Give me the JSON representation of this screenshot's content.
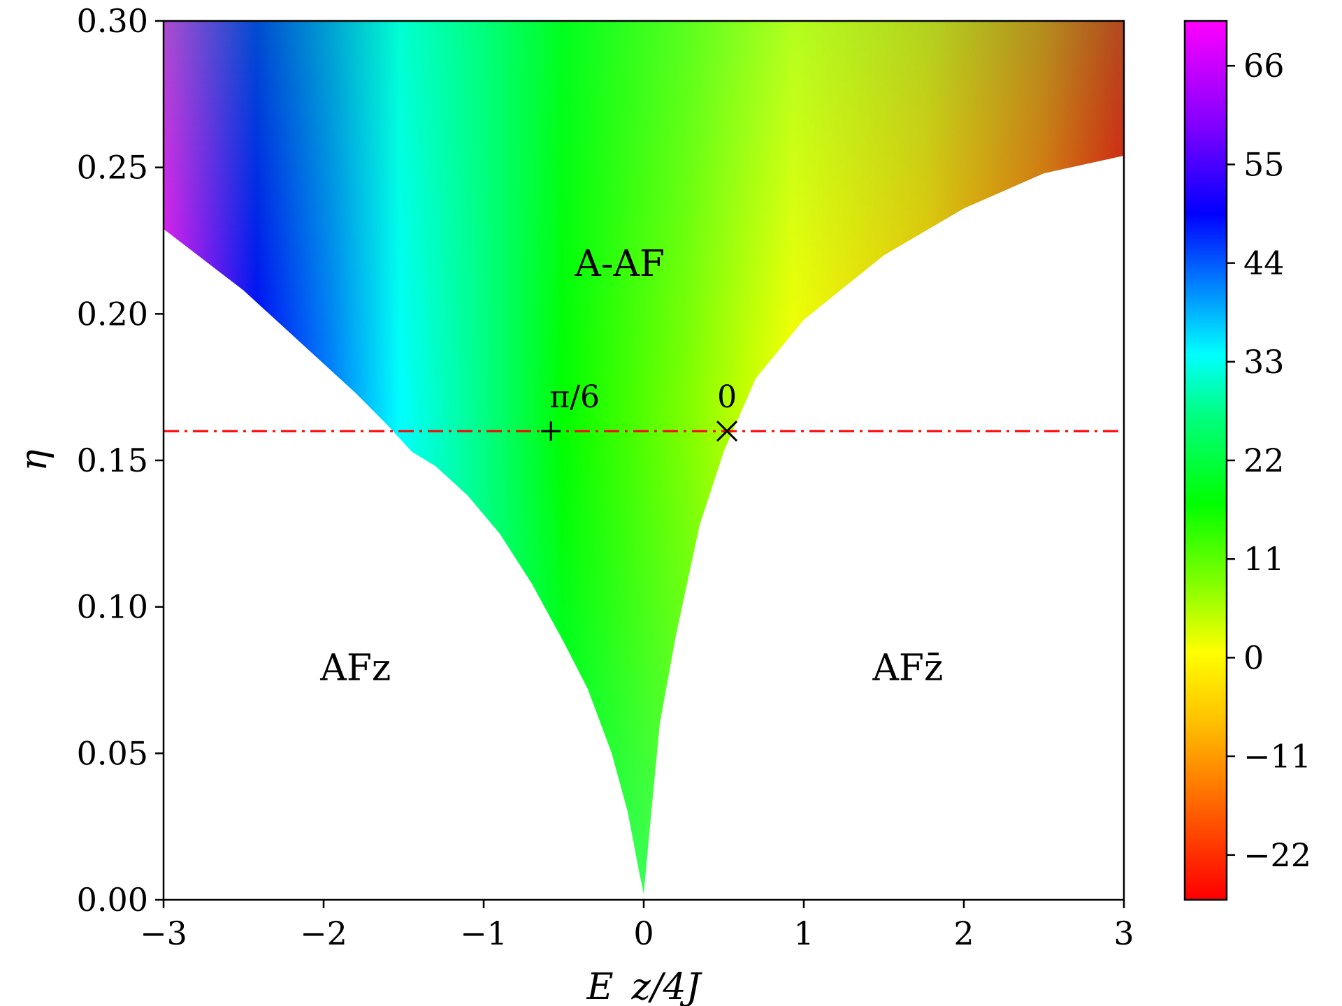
{
  "chart_data": {
    "type": "heatmap",
    "xlabel": "E_z/4J",
    "ylabel": "η",
    "xlim": [
      -3,
      3
    ],
    "ylim": [
      0,
      0.3
    ],
    "x_ticks": [
      {
        "value": -3,
        "label": "−3"
      },
      {
        "value": -2,
        "label": "−2"
      },
      {
        "value": -1,
        "label": "−1"
      },
      {
        "value": 0,
        "label": "0"
      },
      {
        "value": 1,
        "label": "1"
      },
      {
        "value": 2,
        "label": "2"
      },
      {
        "value": 3,
        "label": "3"
      }
    ],
    "y_ticks": [
      {
        "value": 0,
        "label": "0.00"
      },
      {
        "value": 0.05,
        "label": "0.05"
      },
      {
        "value": 0.1,
        "label": "0.10"
      },
      {
        "value": 0.15,
        "label": "0.15"
      },
      {
        "value": 0.2,
        "label": "0.20"
      },
      {
        "value": 0.25,
        "label": "0.25"
      },
      {
        "value": 0.3,
        "label": "0.30"
      }
    ],
    "colorbar": {
      "range": [
        -27,
        71
      ],
      "ticks": [
        {
          "value": 66,
          "label": "66"
        },
        {
          "value": 55,
          "label": "55"
        },
        {
          "value": 44,
          "label": "44"
        },
        {
          "value": 33,
          "label": "33"
        },
        {
          "value": 22,
          "label": "22"
        },
        {
          "value": 11,
          "label": "11"
        },
        {
          "value": 0,
          "label": "0"
        },
        {
          "value": -11,
          "label": "−11"
        },
        {
          "value": -22,
          "label": "−22"
        }
      ]
    },
    "boundary_left": [
      [
        -3.0,
        0.229
      ],
      [
        -2.5,
        0.208
      ],
      [
        -2.0,
        0.183
      ],
      [
        -1.8,
        0.173
      ],
      [
        -1.6,
        0.162
      ],
      [
        -1.45,
        0.153
      ],
      [
        -1.3,
        0.148
      ],
      [
        -1.1,
        0.138
      ],
      [
        -0.9,
        0.125
      ],
      [
        -0.7,
        0.108
      ],
      [
        -0.5,
        0.088
      ],
      [
        -0.35,
        0.072
      ],
      [
        -0.2,
        0.05
      ],
      [
        -0.1,
        0.03
      ],
      [
        -0.03,
        0.01
      ],
      [
        0,
        0.002
      ]
    ],
    "boundary_right": [
      [
        0,
        0.002
      ],
      [
        0.03,
        0.02
      ],
      [
        0.1,
        0.06
      ],
      [
        0.2,
        0.09
      ],
      [
        0.35,
        0.128
      ],
      [
        0.5,
        0.153
      ],
      [
        0.7,
        0.178
      ],
      [
        1.0,
        0.198
      ],
      [
        1.5,
        0.22
      ],
      [
        2.0,
        0.236
      ],
      [
        2.5,
        0.248
      ],
      [
        3.0,
        0.254
      ]
    ],
    "reference_line": {
      "y": 0.16,
      "style": "dash-dot",
      "color": "#ff0000"
    },
    "markers": [
      {
        "x": -0.58,
        "y": 0.16,
        "symbol": "+",
        "label": "π/6"
      },
      {
        "x": 0.52,
        "y": 0.16,
        "symbol": "×",
        "label": "0"
      }
    ],
    "regions": [
      {
        "label": "A-AF",
        "x": -0.15,
        "y": 0.213
      },
      {
        "label": "AFz",
        "x": -1.8,
        "y": 0.075
      },
      {
        "label": "AFz̄",
        "x": 1.65,
        "y": 0.075
      }
    ]
  },
  "colors": {
    "palette": [
      "#ff0000",
      "#ff8000",
      "#ffff00",
      "#80ff00",
      "#00ff00",
      "#00ff80",
      "#00ffff",
      "#0080ff",
      "#0000ff",
      "#8000ff",
      "#ff00ff"
    ],
    "reference_line": "#ff0000"
  }
}
